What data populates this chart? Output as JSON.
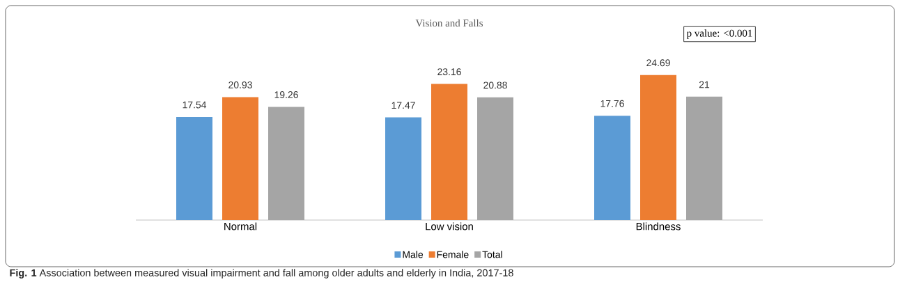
{
  "chart_data": {
    "type": "bar",
    "title": "Vision and Falls",
    "categories": [
      "Normal",
      "Low vision",
      "Blindness"
    ],
    "series": [
      {
        "name": "Male",
        "color": "#5b9bd5",
        "values": [
          17.54,
          17.47,
          17.76
        ]
      },
      {
        "name": "Female",
        "color": "#ed7d31",
        "values": [
          20.93,
          23.16,
          24.69
        ]
      },
      {
        "name": "Total",
        "color": "#a5a5a5",
        "values": [
          19.26,
          20.88,
          21
        ]
      }
    ],
    "data_labels": true,
    "legend": "bottom",
    "annotations": [
      "p value: <0.001",
      "**Fig. 1** Association between measured visual impairment and fall among older adults and elderly in India, 2017-18"
    ]
  }
}
